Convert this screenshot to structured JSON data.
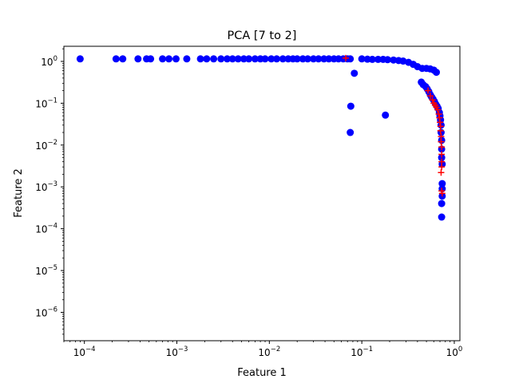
{
  "chart_data": {
    "type": "scatter",
    "title": "PCA [7 to 2]",
    "xlabel": "Feature 1",
    "ylabel": "Feature 2",
    "xscale": "log",
    "yscale": "log",
    "xlim": [
      6e-05,
      1.15
    ],
    "ylim": [
      2.1e-07,
      2.3
    ],
    "grid": false,
    "x_ticks": [
      {
        "value": 0.0001,
        "base": "10",
        "exp": "−4"
      },
      {
        "value": 0.001,
        "base": "10",
        "exp": "−3"
      },
      {
        "value": 0.01,
        "base": "10",
        "exp": "−2"
      },
      {
        "value": 0.1,
        "base": "10",
        "exp": "−1"
      },
      {
        "value": 1,
        "base": "10",
        "exp": "0"
      }
    ],
    "y_ticks": [
      {
        "value": 1e-06,
        "base": "10",
        "exp": "−6"
      },
      {
        "value": 1e-05,
        "base": "10",
        "exp": "−5"
      },
      {
        "value": 0.0001,
        "base": "10",
        "exp": "−4"
      },
      {
        "value": 0.001,
        "base": "10",
        "exp": "−3"
      },
      {
        "value": 0.01,
        "base": "10",
        "exp": "−2"
      },
      {
        "value": 0.1,
        "base": "10",
        "exp": "−1"
      },
      {
        "value": 1,
        "base": "10",
        "exp": "0"
      }
    ],
    "series": [
      {
        "marker": "circle",
        "color": "#0000ff",
        "points": [
          [
            9e-05,
            1.15
          ],
          [
            0.00022,
            1.15
          ],
          [
            0.00026,
            1.15
          ],
          [
            0.00038,
            1.15
          ],
          [
            0.00047,
            1.15
          ],
          [
            0.00052,
            1.15
          ],
          [
            0.0007,
            1.15
          ],
          [
            0.00082,
            1.15
          ],
          [
            0.00098,
            1.15
          ],
          [
            0.00128,
            1.15
          ],
          [
            0.0018,
            1.15
          ],
          [
            0.0021,
            1.15
          ],
          [
            0.0025,
            1.15
          ],
          [
            0.003,
            1.15
          ],
          [
            0.0035,
            1.15
          ],
          [
            0.004,
            1.15
          ],
          [
            0.0046,
            1.15
          ],
          [
            0.0053,
            1.15
          ],
          [
            0.006,
            1.15
          ],
          [
            0.007,
            1.15
          ],
          [
            0.008,
            1.15
          ],
          [
            0.009,
            1.15
          ],
          [
            0.0105,
            1.15
          ],
          [
            0.012,
            1.15
          ],
          [
            0.014,
            1.15
          ],
          [
            0.016,
            1.15
          ],
          [
            0.018,
            1.15
          ],
          [
            0.02,
            1.15
          ],
          [
            0.023,
            1.15
          ],
          [
            0.026,
            1.15
          ],
          [
            0.03,
            1.15
          ],
          [
            0.034,
            1.15
          ],
          [
            0.039,
            1.15
          ],
          [
            0.044,
            1.15
          ],
          [
            0.05,
            1.15
          ],
          [
            0.056,
            1.15
          ],
          [
            0.063,
            1.15
          ],
          [
            0.07,
            1.15
          ],
          [
            0.075,
            1.15
          ],
          [
            0.1,
            1.15
          ],
          [
            0.115,
            1.13
          ],
          [
            0.13,
            1.12
          ],
          [
            0.15,
            1.12
          ],
          [
            0.17,
            1.12
          ],
          [
            0.19,
            1.1
          ],
          [
            0.22,
            1.08
          ],
          [
            0.25,
            1.05
          ],
          [
            0.28,
            1.02
          ],
          [
            0.32,
            0.95
          ],
          [
            0.36,
            0.85
          ],
          [
            0.4,
            0.75
          ],
          [
            0.45,
            0.68
          ],
          [
            0.5,
            0.68
          ],
          [
            0.55,
            0.66
          ],
          [
            0.6,
            0.62
          ],
          [
            0.64,
            0.55
          ],
          [
            0.083,
            0.52
          ],
          [
            0.076,
            0.085
          ],
          [
            0.075,
            0.02
          ],
          [
            0.18,
            0.052
          ],
          [
            0.44,
            0.32
          ],
          [
            0.46,
            0.28
          ],
          [
            0.49,
            0.25
          ],
          [
            0.51,
            0.22
          ],
          [
            0.53,
            0.19
          ],
          [
            0.55,
            0.16
          ],
          [
            0.57,
            0.14
          ],
          [
            0.59,
            0.125
          ],
          [
            0.61,
            0.11
          ],
          [
            0.63,
            0.095
          ],
          [
            0.65,
            0.085
          ],
          [
            0.67,
            0.075
          ],
          [
            0.69,
            0.06
          ],
          [
            0.7,
            0.05
          ],
          [
            0.71,
            0.04
          ],
          [
            0.72,
            0.03
          ],
          [
            0.72,
            0.02
          ],
          [
            0.73,
            0.013
          ],
          [
            0.73,
            0.008
          ],
          [
            0.73,
            0.005
          ],
          [
            0.74,
            0.0035
          ],
          [
            0.74,
            0.0012
          ],
          [
            0.74,
            0.0009
          ],
          [
            0.74,
            0.0006
          ],
          [
            0.73,
            0.0004
          ],
          [
            0.73,
            0.00019
          ]
        ]
      },
      {
        "marker": "plus",
        "color": "#ff0000",
        "points": [
          [
            0.067,
            1.2
          ],
          [
            0.52,
            0.2
          ],
          [
            0.55,
            0.15
          ],
          [
            0.58,
            0.12
          ],
          [
            0.6,
            0.1
          ],
          [
            0.62,
            0.09
          ],
          [
            0.64,
            0.08
          ],
          [
            0.66,
            0.07
          ],
          [
            0.68,
            0.055
          ],
          [
            0.69,
            0.045
          ],
          [
            0.7,
            0.035
          ],
          [
            0.71,
            0.028
          ],
          [
            0.71,
            0.022
          ],
          [
            0.72,
            0.016
          ],
          [
            0.72,
            0.012
          ],
          [
            0.73,
            0.009
          ],
          [
            0.73,
            0.006
          ],
          [
            0.73,
            0.004
          ],
          [
            0.73,
            0.003
          ],
          [
            0.72,
            0.0022
          ],
          [
            0.73,
            0.0008
          ],
          [
            0.74,
            0.0007
          ]
        ]
      }
    ]
  }
}
